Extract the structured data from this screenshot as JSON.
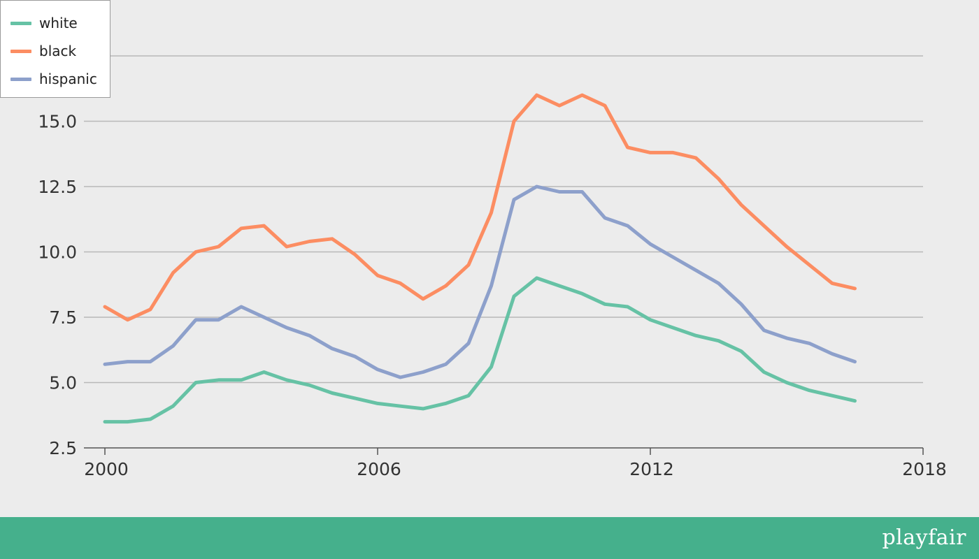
{
  "chart_data": {
    "type": "line",
    "title": "",
    "xlabel": "",
    "ylabel": "",
    "xlim": [
      2000,
      2018
    ],
    "ylim": [
      2.5,
      17.5
    ],
    "grid": true,
    "legend_position": "top-left",
    "x_ticks": [
      "2000",
      "2006",
      "2012",
      "2018"
    ],
    "y_ticks": [
      "2.5",
      "5.0",
      "7.5",
      "10.0",
      "12.5",
      "15.0"
    ],
    "x": [
      2000.0,
      2000.5,
      2001.0,
      2001.5,
      2002.0,
      2002.5,
      2003.0,
      2003.5,
      2004.0,
      2004.5,
      2005.0,
      2005.5,
      2006.0,
      2006.5,
      2007.0,
      2007.5,
      2008.0,
      2008.5,
      2009.0,
      2009.5,
      2010.0,
      2010.5,
      2011.0,
      2011.5,
      2012.0,
      2012.5,
      2013.0,
      2013.5,
      2014.0,
      2014.5,
      2015.0,
      2015.5,
      2016.0,
      2016.5
    ],
    "series": [
      {
        "name": "white",
        "color": "#66c2a5",
        "values": [
          3.5,
          3.5,
          3.6,
          4.1,
          5.0,
          5.1,
          5.1,
          5.4,
          5.1,
          4.9,
          4.6,
          4.4,
          4.2,
          4.1,
          4.0,
          4.2,
          4.5,
          5.6,
          8.3,
          9.0,
          8.7,
          8.4,
          8.0,
          7.9,
          7.4,
          7.1,
          6.8,
          6.6,
          6.2,
          5.4,
          5.0,
          4.7,
          4.5,
          4.3
        ]
      },
      {
        "name": "black",
        "color": "#fc8d62",
        "values": [
          7.9,
          7.4,
          7.8,
          9.2,
          10.0,
          10.2,
          10.9,
          11.0,
          10.2,
          10.4,
          10.5,
          9.9,
          9.1,
          8.8,
          8.2,
          8.7,
          9.5,
          11.5,
          15.0,
          16.0,
          15.6,
          16.0,
          15.6,
          14.0,
          13.8,
          13.8,
          13.6,
          12.8,
          11.8,
          11.0,
          10.2,
          9.5,
          8.8,
          8.6
        ]
      },
      {
        "name": "hispanic",
        "color": "#8da0cb",
        "values": [
          5.7,
          5.8,
          5.8,
          6.4,
          7.4,
          7.4,
          7.9,
          7.5,
          7.1,
          6.8,
          6.3,
          6.0,
          5.5,
          5.2,
          5.4,
          5.7,
          6.5,
          8.7,
          12.0,
          12.5,
          12.3,
          12.3,
          11.3,
          11.0,
          10.3,
          9.8,
          9.3,
          8.8,
          8.0,
          7.0,
          6.7,
          6.5,
          6.1,
          5.8
        ]
      }
    ]
  },
  "footer": {
    "brand": "playfair",
    "color": "#45b08c"
  }
}
